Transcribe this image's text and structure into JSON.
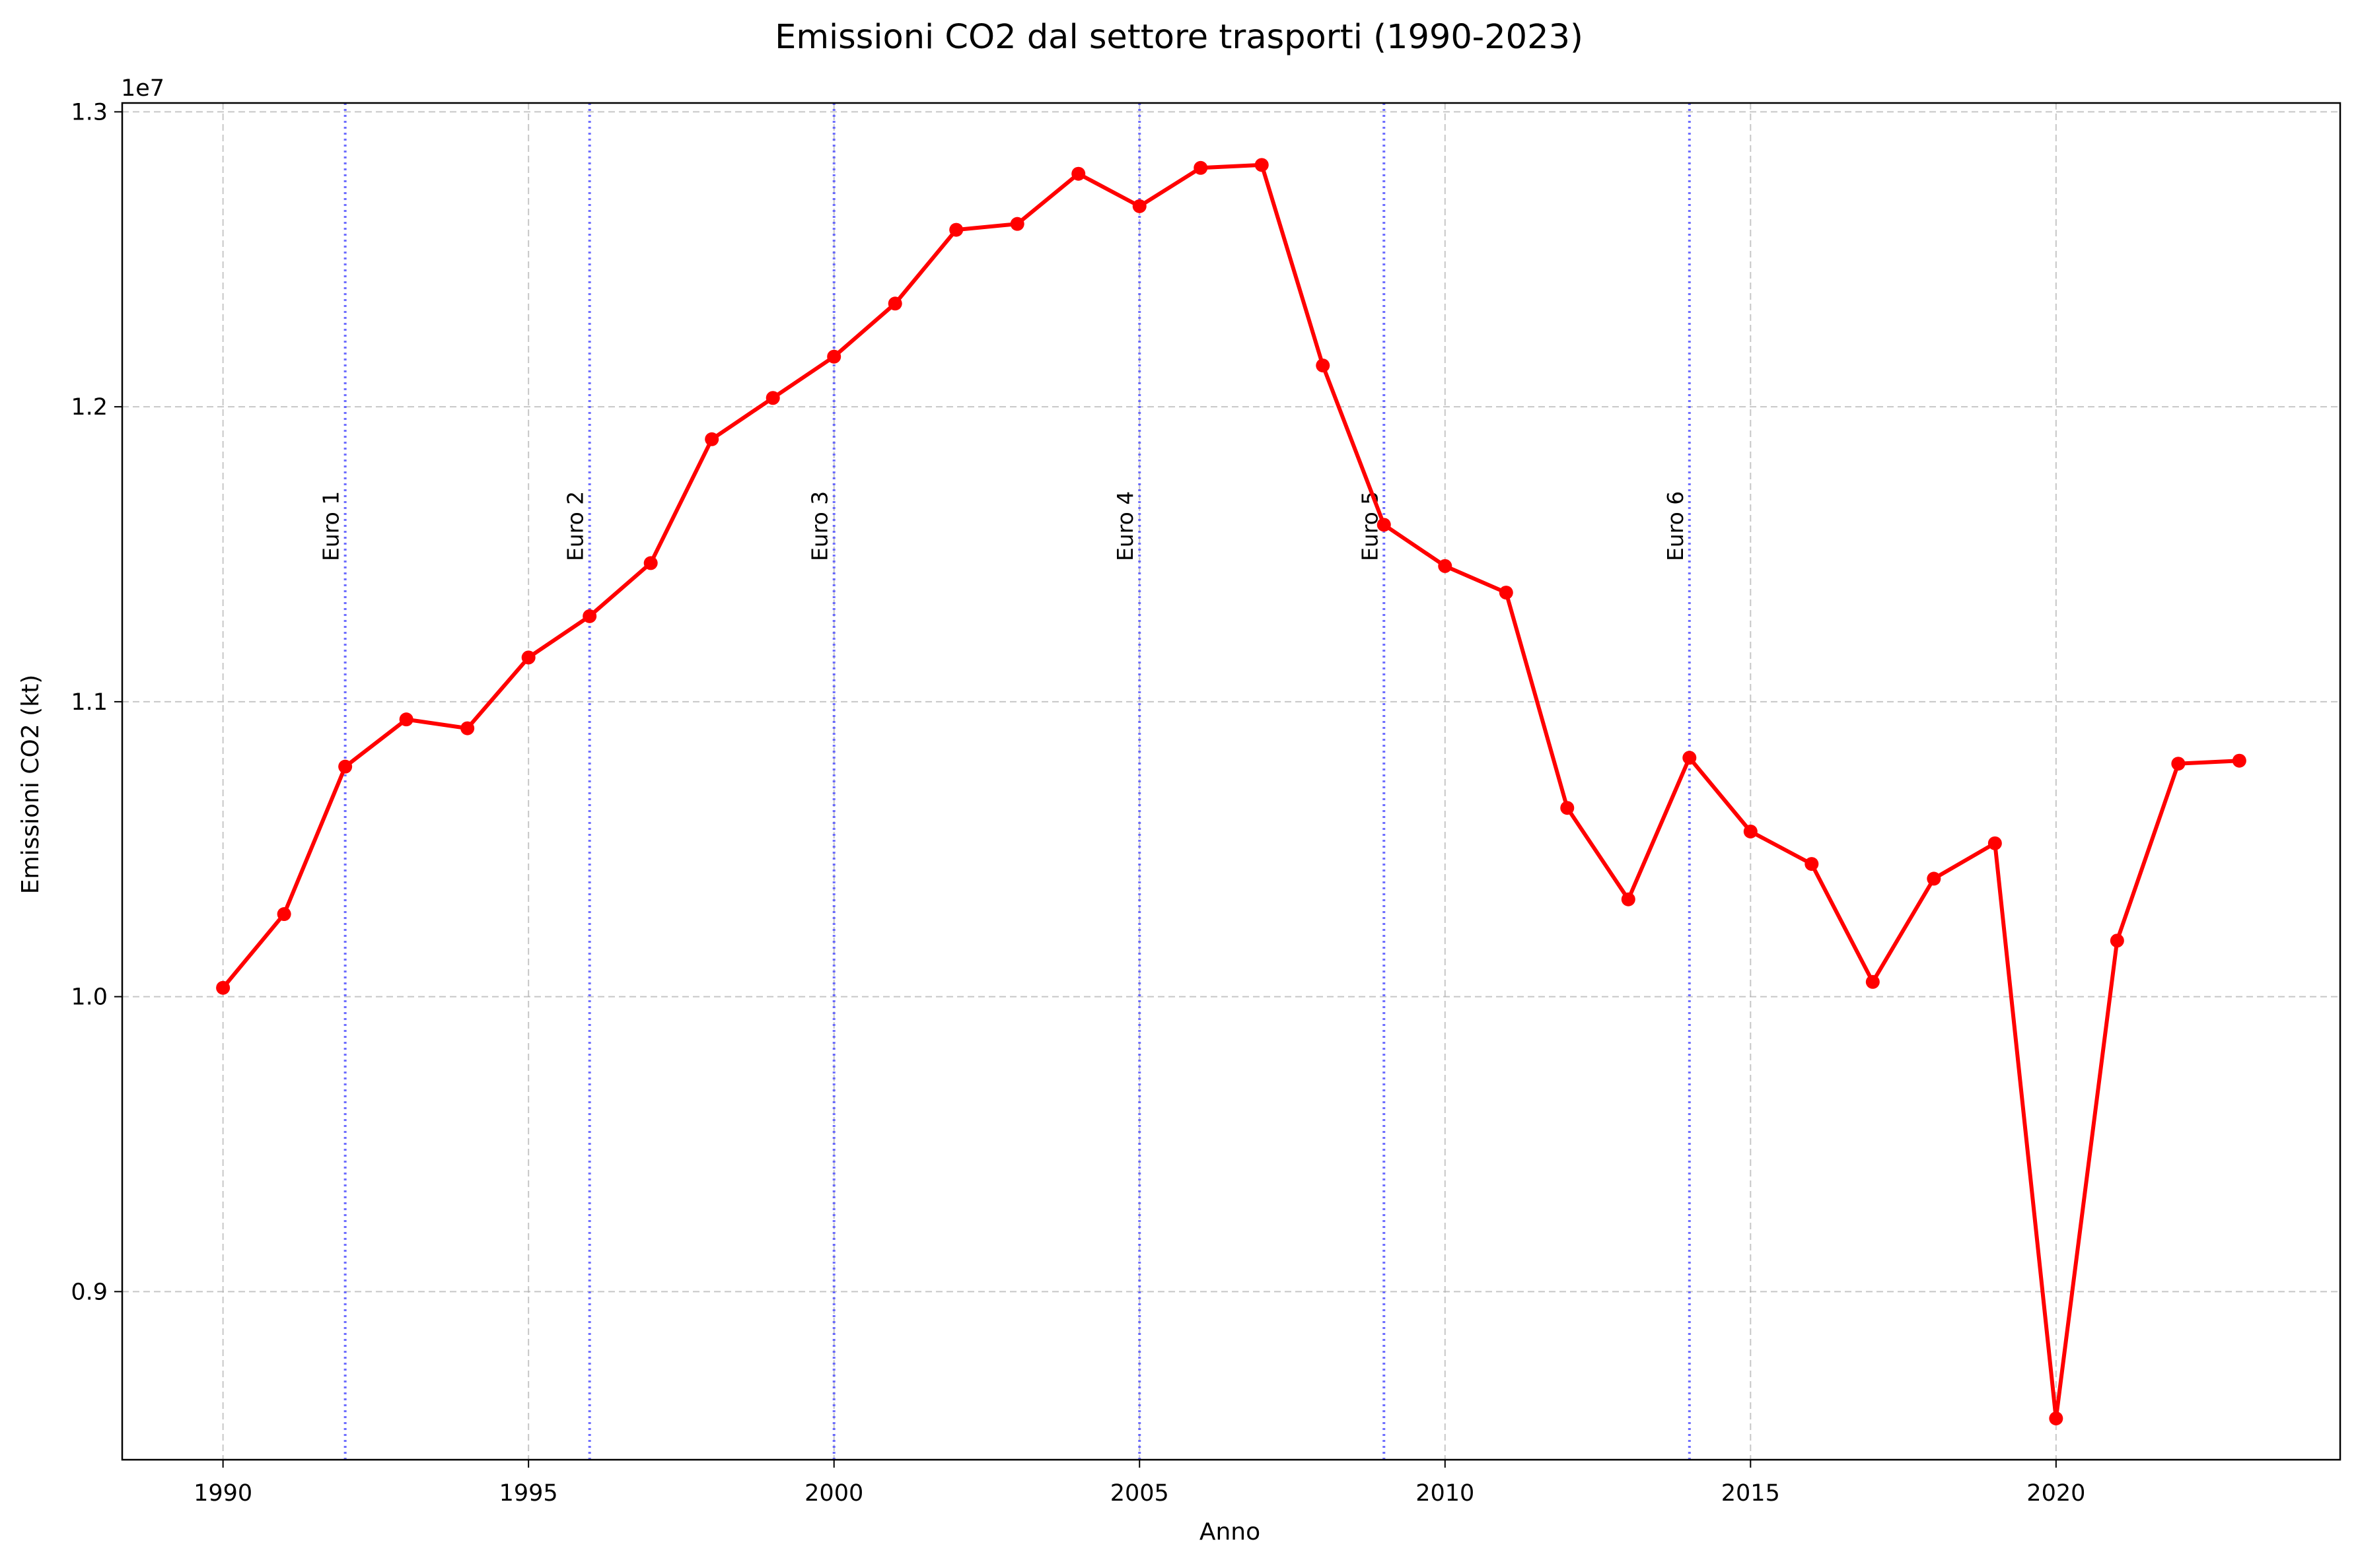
{
  "chart_data": {
    "type": "line",
    "title": "Emissioni CO2 dal settore trasporti (1990-2023)",
    "xlabel": "Anno",
    "ylabel": "Emissioni CO2 (kt)",
    "y_offset_label": "1e7",
    "xlim": [
      1988.35,
      2024.65
    ],
    "ylim": [
      8.43,
      13.03
    ],
    "x_ticks": [
      1990,
      1995,
      2000,
      2005,
      2010,
      2015,
      2020
    ],
    "y_ticks": [
      0.9,
      1.0,
      1.1,
      1.2,
      1.3
    ],
    "grid": true,
    "line_color": "#ff0000",
    "reference_line_color": "#5555ff",
    "reference_lines": [
      {
        "x": 1992,
        "label": "Euro 1"
      },
      {
        "x": 1996,
        "label": "Euro 2"
      },
      {
        "x": 2000,
        "label": "Euro 3"
      },
      {
        "x": 2005,
        "label": "Euro 4"
      },
      {
        "x": 2009,
        "label": "Euro 5"
      },
      {
        "x": 2014,
        "label": "Euro 6"
      }
    ],
    "series": [
      {
        "x": [
          1990,
          1991,
          1992,
          1993,
          1994,
          1995,
          1996,
          1997,
          1998,
          1999,
          2000,
          2001,
          2002,
          2003,
          2004,
          2005,
          2006,
          2007,
          2008,
          2009,
          2010,
          2011,
          2012,
          2013,
          2014,
          2015,
          2016,
          2017,
          2018,
          2019,
          2020,
          2021,
          2022,
          2023
        ],
        "values": [
          10.03,
          10.28,
          10.78,
          10.94,
          10.91,
          11.15,
          11.29,
          11.47,
          11.89,
          12.03,
          12.17,
          12.35,
          12.6,
          12.62,
          12.79,
          12.68,
          12.81,
          12.82,
          12.14,
          11.6,
          11.46,
          11.37,
          10.64,
          10.33,
          10.81,
          10.56,
          10.45,
          10.05,
          10.4,
          10.52,
          8.57,
          10.19,
          10.79,
          10.8
        ]
      }
    ]
  }
}
